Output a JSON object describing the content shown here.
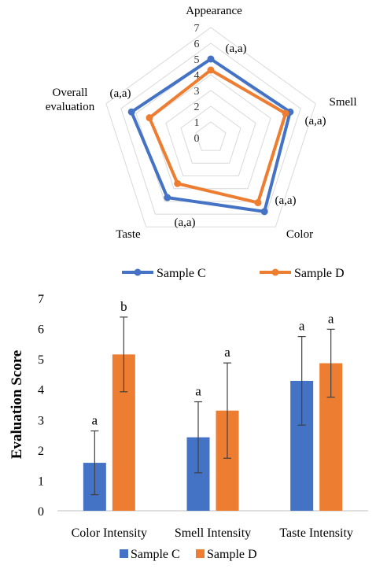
{
  "chart_data": [
    {
      "type": "radar",
      "axes": [
        "Appearance",
        "Smell",
        "Color",
        "Taste",
        "Overall evaluation"
      ],
      "axis_label_lines": [
        [
          "Appearance"
        ],
        [
          "Smell"
        ],
        [
          "Color"
        ],
        [
          "Taste"
        ],
        [
          "Overall",
          "evaluation"
        ]
      ],
      "rlim": [
        0,
        7
      ],
      "r_ticks": [
        "0",
        "1",
        "2",
        "3",
        "4",
        "5",
        "6",
        "7"
      ],
      "series": [
        {
          "name": "Sample C",
          "color": "#4472C4",
          "values": [
            5.0,
            5.3,
            5.8,
            4.7,
            5.3
          ]
        },
        {
          "name": "Sample D",
          "color": "#ED7D31",
          "values": [
            4.3,
            5.0,
            5.1,
            3.6,
            4.1
          ]
        }
      ],
      "significance_labels": [
        "(a,a)",
        "(a,a)",
        "(a,a)",
        "(a,a)",
        "(a,a)"
      ],
      "legend_position": "bottom"
    },
    {
      "type": "bar",
      "categories": [
        "Color Intensity",
        "Smell Intensity",
        "Taste Intensity"
      ],
      "series": [
        {
          "name": "Sample C",
          "color": "#4472C4",
          "values": [
            1.58,
            2.42,
            4.28
          ],
          "error": [
            1.05,
            1.17,
            1.46
          ],
          "letters": [
            "a",
            "a",
            "a"
          ]
        },
        {
          "name": "Sample D",
          "color": "#ED7D31",
          "values": [
            5.15,
            3.3,
            4.86
          ],
          "error": [
            1.23,
            1.57,
            1.12
          ],
          "letters": [
            "b",
            "a",
            "a"
          ]
        }
      ],
      "ylabel": "Evaluation Score",
      "ylim": [
        0,
        7
      ],
      "y_ticks": [
        "0",
        "1",
        "2",
        "3",
        "4",
        "5",
        "6",
        "7"
      ],
      "legend_position": "bottom",
      "grid": false
    }
  ]
}
